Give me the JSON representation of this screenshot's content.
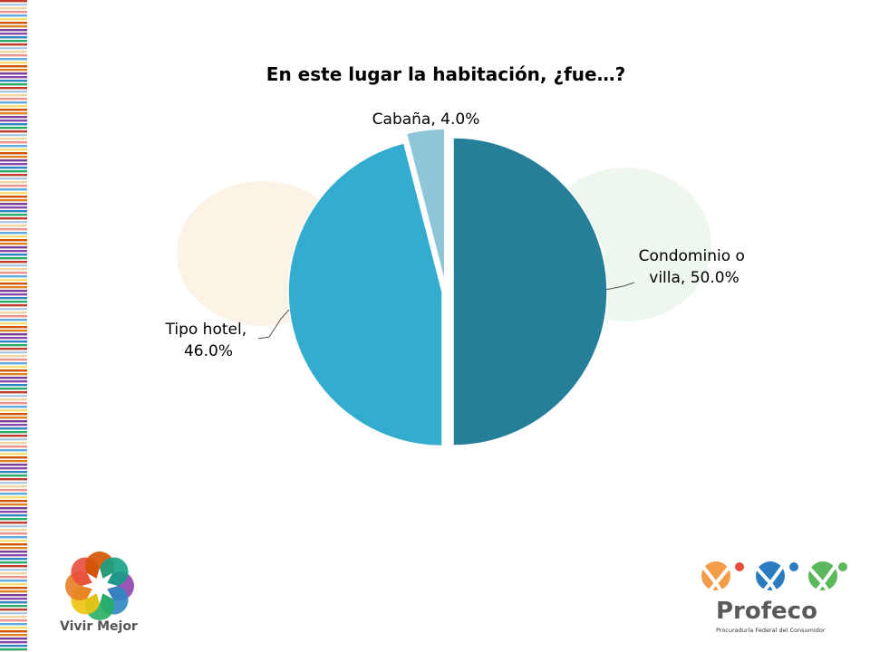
{
  "colors": {
    "slice_condominio": "#257f99",
    "slice_hotel": "#34acd0",
    "slice_cabana": "#8ec5d8",
    "stripes": [
      "#c0392b",
      "#e67e22",
      "#f5d7a1",
      "#8e44ad",
      "#5dade2",
      "#27ae60",
      "#d35400",
      "#a9cce3",
      "#7d3c98",
      "#f1948a",
      "#2e86c1",
      "#f7dc6f"
    ]
  },
  "chart_data": {
    "type": "pie",
    "title": "En este lugar la habitación, ¿fue…?",
    "slices": [
      {
        "name": "Condominio o villa",
        "value": 50.0,
        "label_lines": [
          "Condominio o",
          "villa, 50.0%"
        ],
        "color": "#257f99"
      },
      {
        "name": "Tipo hotel",
        "value": 46.0,
        "label_lines": [
          "Tipo hotel,",
          "46.0%"
        ],
        "color": "#34acd0"
      },
      {
        "name": "Cabaña",
        "value": 4.0,
        "label_lines": [
          "Cabaña, 4.0%"
        ],
        "color": "#8ec5d8"
      }
    ]
  },
  "logos": {
    "left": {
      "icon": "vivir-mejor-flower-icon",
      "text": "Vivir Mejor"
    },
    "right": {
      "icon": "profeco-figures-icon",
      "name": "Profeco",
      "subtitle": "Procuraduría Federal del Consumidor"
    }
  }
}
